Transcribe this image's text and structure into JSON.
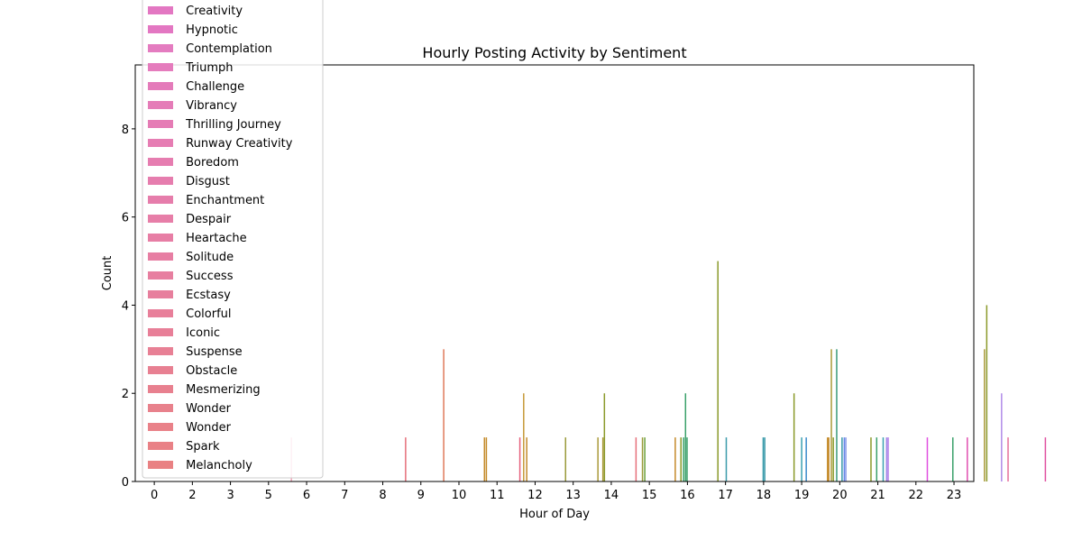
{
  "chart_data": {
    "type": "bar",
    "title": "Hourly Posting Activity by Sentiment",
    "xlabel": "Hour of Day",
    "ylabel": "Count",
    "ylim": [
      0,
      9.45
    ],
    "y_ticks": [
      "0",
      "2",
      "4",
      "6",
      "8"
    ],
    "categories": [
      "0",
      "2",
      "3",
      "5",
      "6",
      "7",
      "8",
      "9",
      "10",
      "11",
      "12",
      "13",
      "14",
      "15",
      "16",
      "17",
      "18",
      "19",
      "20",
      "21",
      "22",
      "23"
    ],
    "legend_position": "upper-left",
    "legend_visible": [
      {
        "name": " Creativity",
        "color": "#e377c2"
      },
      {
        "name": " Hypnotic",
        "color": "#e377c2"
      },
      {
        "name": " Contemplation",
        "color": "#e47cc0"
      },
      {
        "name": " Triumph",
        "color": "#e57cbd"
      },
      {
        "name": " Challenge",
        "color": "#e47bba"
      },
      {
        "name": " Vibrancy",
        "color": "#e57cb8"
      },
      {
        "name": " Thrilling Journey",
        "color": "#e57cb5"
      },
      {
        "name": " Runway Creativity",
        "color": "#e67db3"
      },
      {
        "name": " Boredom",
        "color": "#e67db0"
      },
      {
        "name": " Disgust",
        "color": "#e67dae"
      },
      {
        "name": " Enchantment",
        "color": "#e67dab"
      },
      {
        "name": " Despair",
        "color": "#e77ea8"
      },
      {
        "name": " Heartache",
        "color": "#e77ea5"
      },
      {
        "name": " Solitude",
        "color": "#e77ea3"
      },
      {
        "name": " Success",
        "color": "#e77fa0"
      },
      {
        "name": " Ecstasy",
        "color": "#e77f9d"
      },
      {
        "name": " Colorful",
        "color": "#e87f9a"
      },
      {
        "name": " Iconic",
        "color": "#e87f98"
      },
      {
        "name": " Suspense",
        "color": "#e88095"
      },
      {
        "name": " Obstacle",
        "color": "#e88092"
      },
      {
        "name": " Mesmerizing",
        "color": "#e8808f"
      },
      {
        "name": " Wonder",
        "color": "#e8818c"
      },
      {
        "name": " Wonder",
        "color": "#e98189"
      },
      {
        "name": " Spark",
        "color": "#e98186"
      },
      {
        "name": " Melancholy",
        "color": "#e98183"
      }
    ],
    "bars": [
      {
        "x": 3.6,
        "value": 1,
        "color": "#f2a3b8"
      },
      {
        "x": 6.6,
        "value": 1,
        "color": "#e66f7a"
      },
      {
        "x": 7.6,
        "value": 3,
        "color": "#e07a5a"
      },
      {
        "x": 8.67,
        "value": 1,
        "color": "#c48a2a"
      },
      {
        "x": 8.72,
        "value": 1,
        "color": "#c48a2a"
      },
      {
        "x": 9.6,
        "value": 1,
        "color": "#e6607a"
      },
      {
        "x": 9.7,
        "value": 2,
        "color": "#c69a3a"
      },
      {
        "x": 9.78,
        "value": 1,
        "color": "#c48a2a"
      },
      {
        "x": 10.8,
        "value": 1,
        "color": "#9a9a3a"
      },
      {
        "x": 11.65,
        "value": 1,
        "color": "#aa9a3a"
      },
      {
        "x": 11.78,
        "value": 1,
        "color": "#aa9a3a"
      },
      {
        "x": 11.82,
        "value": 2,
        "color": "#8a9a2a"
      },
      {
        "x": 12.65,
        "value": 1,
        "color": "#e66f7a"
      },
      {
        "x": 12.82,
        "value": 1,
        "color": "#9a9a3a"
      },
      {
        "x": 12.88,
        "value": 1,
        "color": "#6aa03a"
      },
      {
        "x": 13.68,
        "value": 1,
        "color": "#c48a2a"
      },
      {
        "x": 13.83,
        "value": 1,
        "color": "#8a9a2a"
      },
      {
        "x": 13.9,
        "value": 1,
        "color": "#3aa06a"
      },
      {
        "x": 13.95,
        "value": 2,
        "color": "#3aa06a"
      },
      {
        "x": 13.99,
        "value": 1,
        "color": "#3aa06a"
      },
      {
        "x": 14.8,
        "value": 5,
        "color": "#8a9a2a"
      },
      {
        "x": 15.02,
        "value": 1,
        "color": "#3a9aaa"
      },
      {
        "x": 15.99,
        "value": 1,
        "color": "#3a9aaa"
      },
      {
        "x": 16.03,
        "value": 1,
        "color": "#3a9aaa"
      },
      {
        "x": 16.8,
        "value": 2,
        "color": "#8a9a2a"
      },
      {
        "x": 17.0,
        "value": 1,
        "color": "#3aa0b0"
      },
      {
        "x": 17.12,
        "value": 1,
        "color": "#3a8aca"
      },
      {
        "x": 17.68,
        "value": 1,
        "color": "#c48a2a"
      },
      {
        "x": 17.71,
        "value": 1,
        "color": "#c48a2a"
      },
      {
        "x": 17.78,
        "value": 3,
        "color": "#aa9a3a"
      },
      {
        "x": 17.83,
        "value": 1,
        "color": "#8a9a2a"
      },
      {
        "x": 17.92,
        "value": 3,
        "color": "#3a9a7a"
      },
      {
        "x": 18.06,
        "value": 1,
        "color": "#3a9aaa"
      },
      {
        "x": 18.12,
        "value": 1,
        "color": "#6a8ae8"
      },
      {
        "x": 18.16,
        "value": 1,
        "color": "#8a9ae8"
      },
      {
        "x": 18.82,
        "value": 1,
        "color": "#8a9a2a"
      },
      {
        "x": 18.97,
        "value": 1,
        "color": "#3aa06a"
      },
      {
        "x": 19.14,
        "value": 1,
        "color": "#3aa0b0"
      },
      {
        "x": 19.23,
        "value": 1,
        "color": "#a08ae8"
      },
      {
        "x": 19.27,
        "value": 1,
        "color": "#b07ae8"
      },
      {
        "x": 20.3,
        "value": 1,
        "color": "#e050e0"
      },
      {
        "x": 20.97,
        "value": 1,
        "color": "#3aa06a"
      },
      {
        "x": 21.35,
        "value": 1,
        "color": "#e050b0"
      },
      {
        "x": 21.8,
        "value": 3,
        "color": "#aa9a3a"
      },
      {
        "x": 21.86,
        "value": 4,
        "color": "#8a9a2a"
      },
      {
        "x": 22.25,
        "value": 2,
        "color": "#b08ae8"
      },
      {
        "x": 22.42,
        "value": 1,
        "color": "#e66f9a"
      },
      {
        "x": 23.4,
        "value": 1,
        "color": "#e050a0"
      }
    ]
  }
}
